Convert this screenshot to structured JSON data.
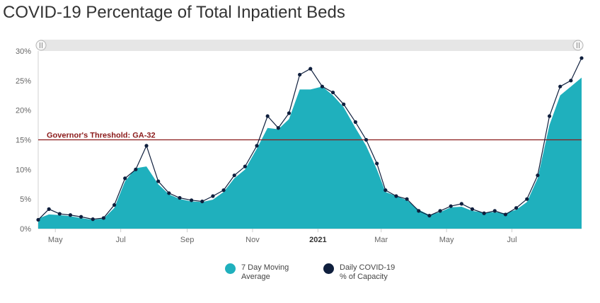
{
  "chart_data": {
    "type": "area",
    "title": "COVID-19 Percentage of Total Inpatient Beds",
    "xlabel": "",
    "ylabel": "",
    "x_range": [
      "2020-04-15",
      "2021-09-04"
    ],
    "ylim": [
      0,
      30
    ],
    "y_ticks": [
      "0%",
      "5%",
      "10%",
      "15%",
      "20%",
      "25%",
      "30%"
    ],
    "x_ticks": [
      {
        "date": "2020-05-01",
        "label": "May"
      },
      {
        "date": "2020-07-01",
        "label": "Jul"
      },
      {
        "date": "2020-09-01",
        "label": "Sep"
      },
      {
        "date": "2020-11-01",
        "label": "Nov"
      },
      {
        "date": "2021-01-01",
        "label": "2021",
        "bold": true
      },
      {
        "date": "2021-03-01",
        "label": "Mar"
      },
      {
        "date": "2021-05-01",
        "label": "May"
      },
      {
        "date": "2021-07-01",
        "label": "Jul"
      }
    ],
    "grid": false,
    "legend_position": "bottom",
    "threshold": {
      "value": 15,
      "label": "Governor's Threshold: GA-32",
      "color": "#8b1a1a"
    },
    "series": [
      {
        "name": "7 Day Moving Average",
        "color": "#1fb0bd",
        "style": "area",
        "x": [
          "2020-04-15",
          "2020-04-25",
          "2020-05-05",
          "2020-05-15",
          "2020-05-25",
          "2020-06-05",
          "2020-06-15",
          "2020-06-25",
          "2020-07-05",
          "2020-07-15",
          "2020-07-25",
          "2020-08-05",
          "2020-08-15",
          "2020-08-25",
          "2020-09-05",
          "2020-09-15",
          "2020-09-25",
          "2020-10-05",
          "2020-10-15",
          "2020-10-25",
          "2020-11-05",
          "2020-11-15",
          "2020-11-25",
          "2020-12-05",
          "2020-12-15",
          "2020-12-25",
          "2021-01-05",
          "2021-01-15",
          "2021-01-25",
          "2021-02-05",
          "2021-02-15",
          "2021-02-25",
          "2021-03-05",
          "2021-03-15",
          "2021-03-25",
          "2021-04-05",
          "2021-04-15",
          "2021-04-25",
          "2021-05-05",
          "2021-05-15",
          "2021-05-25",
          "2021-06-05",
          "2021-06-15",
          "2021-06-25",
          "2021-07-05",
          "2021-07-15",
          "2021-07-25",
          "2021-08-05",
          "2021-08-15",
          "2021-08-25",
          "2021-09-04"
        ],
        "values": [
          1.7,
          2.4,
          2.3,
          2.1,
          1.8,
          1.5,
          1.7,
          3.5,
          8.0,
          10.2,
          10.5,
          7.5,
          5.8,
          5.0,
          4.6,
          4.5,
          4.9,
          6.2,
          8.5,
          10.0,
          13.5,
          17.0,
          16.8,
          18.5,
          23.5,
          23.5,
          24.0,
          22.5,
          20.5,
          17.0,
          14.0,
          10.0,
          6.2,
          5.5,
          4.8,
          3.2,
          2.3,
          2.8,
          3.6,
          3.7,
          3.0,
          2.7,
          2.8,
          2.6,
          3.2,
          4.5,
          8.5,
          17.5,
          22.5,
          24.0,
          25.5
        ]
      },
      {
        "name": "Daily COVID-19 % of Capacity",
        "color": "#0f1f3d",
        "style": "line-markers",
        "x": [
          "2020-04-15",
          "2020-04-25",
          "2020-05-05",
          "2020-05-15",
          "2020-05-25",
          "2020-06-05",
          "2020-06-15",
          "2020-06-25",
          "2020-07-05",
          "2020-07-15",
          "2020-07-25",
          "2020-08-05",
          "2020-08-15",
          "2020-08-25",
          "2020-09-05",
          "2020-09-15",
          "2020-09-25",
          "2020-10-05",
          "2020-10-15",
          "2020-10-25",
          "2020-11-05",
          "2020-11-15",
          "2020-11-25",
          "2020-12-05",
          "2020-12-15",
          "2020-12-25",
          "2021-01-05",
          "2021-01-15",
          "2021-01-25",
          "2021-02-05",
          "2021-02-15",
          "2021-02-25",
          "2021-03-05",
          "2021-03-15",
          "2021-03-25",
          "2021-04-05",
          "2021-04-15",
          "2021-04-25",
          "2021-05-05",
          "2021-05-15",
          "2021-05-25",
          "2021-06-05",
          "2021-06-15",
          "2021-06-25",
          "2021-07-05",
          "2021-07-15",
          "2021-07-25",
          "2021-08-05",
          "2021-08-15",
          "2021-08-25",
          "2021-09-04"
        ],
        "values": [
          1.5,
          3.3,
          2.5,
          2.3,
          2.0,
          1.6,
          1.8,
          4.0,
          8.5,
          10.0,
          14.0,
          8.0,
          6.0,
          5.2,
          4.8,
          4.6,
          5.5,
          6.5,
          9.0,
          10.5,
          14.0,
          19.0,
          17.0,
          19.5,
          26.0,
          27.0,
          24.0,
          23.0,
          21.0,
          18.0,
          15.0,
          11.0,
          6.5,
          5.5,
          5.0,
          3.0,
          2.2,
          3.0,
          3.8,
          4.2,
          3.3,
          2.6,
          3.0,
          2.4,
          3.5,
          5.0,
          9.0,
          19.0,
          24.0,
          25.0,
          28.8
        ]
      }
    ]
  },
  "legend": [
    {
      "label": "7 Day Moving Average",
      "color": "#1fb0bd"
    },
    {
      "label": "Daily COVID-19 % of Capacity",
      "color": "#0f1f3d"
    }
  ],
  "navigator": {
    "left_handle": "resize-handle-icon",
    "right_handle": "resize-handle-icon"
  }
}
